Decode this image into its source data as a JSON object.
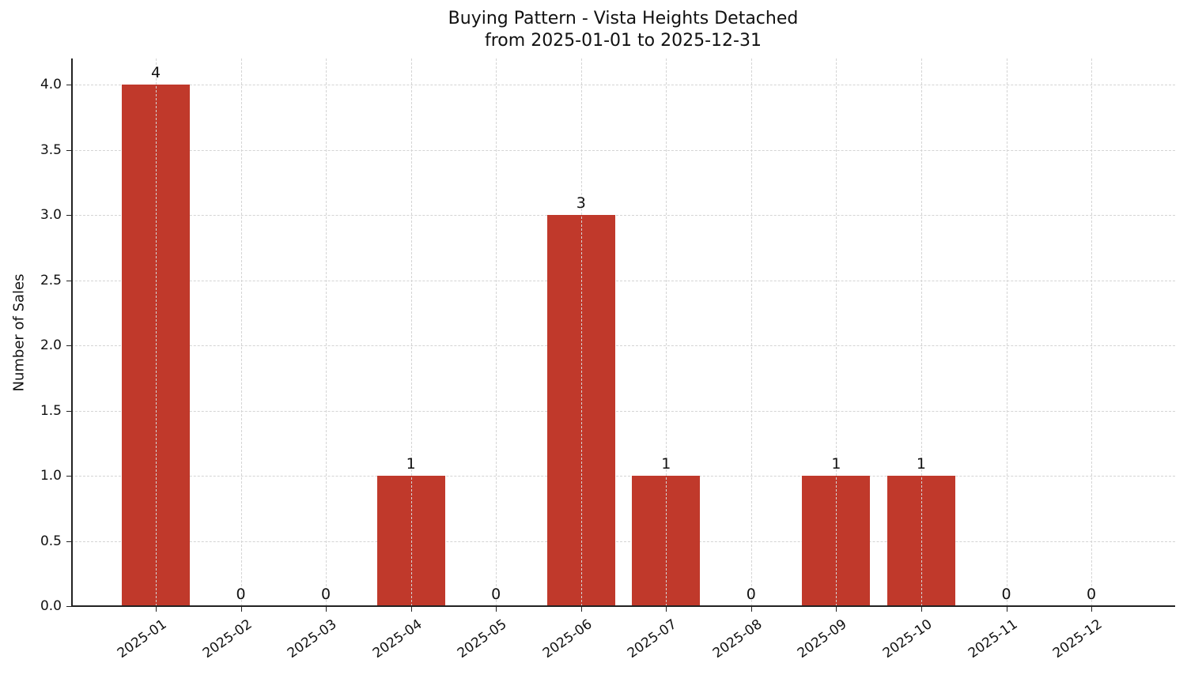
{
  "chart_data": {
    "type": "bar",
    "title": "Buying Pattern - Vista Heights Detached",
    "subtitle": "from 2025-01-01 to 2025-12-31",
    "xlabel": "",
    "ylabel": "Number of Sales",
    "categories": [
      "2025-01",
      "2025-02",
      "2025-03",
      "2025-04",
      "2025-05",
      "2025-06",
      "2025-07",
      "2025-08",
      "2025-09",
      "2025-10",
      "2025-11",
      "2025-12"
    ],
    "values": [
      4,
      0,
      0,
      1,
      0,
      3,
      1,
      0,
      1,
      1,
      0,
      0
    ],
    "data_labels": [
      "4",
      "0",
      "0",
      "1",
      "0",
      "3",
      "1",
      "0",
      "1",
      "1",
      "0",
      "0"
    ],
    "ylim": [
      0,
      4.2
    ],
    "yticks": [
      "0.0",
      "0.5",
      "1.0",
      "1.5",
      "2.0",
      "2.5",
      "3.0",
      "3.5",
      "4.0"
    ],
    "grid": true,
    "legend": null,
    "bar_color": "#c0392b"
  }
}
